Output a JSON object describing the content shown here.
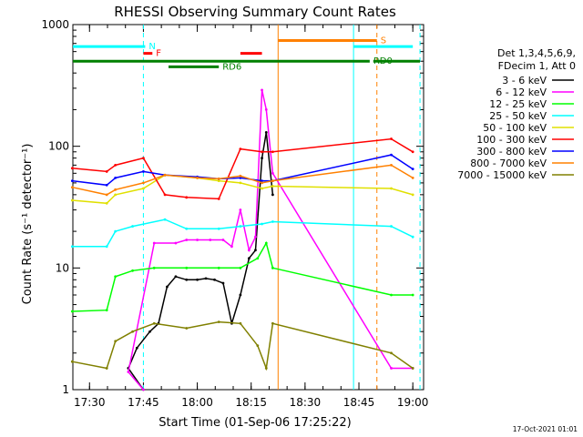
{
  "chart_data": {
    "type": "line",
    "title": "RHESSI Observing Summary Count Rates",
    "xlabel": "Start Time (01-Sep-06 17:25:22)",
    "ylabel": "Count Rate (s⁻¹ detector⁻¹)",
    "yscale": "log",
    "xlim": [
      "17:25:22",
      "19:03:00"
    ],
    "ylim": [
      1,
      1000
    ],
    "x_ticks": [
      "17:30",
      "17:45",
      "18:00",
      "18:15",
      "18:30",
      "18:45",
      "19:00"
    ],
    "y_ticks": [
      "1",
      "10",
      "100",
      "1000"
    ],
    "legend_header": [
      "Det 1,3,4,5,6,9,",
      "FDecim 1, Att 0"
    ],
    "legend_position": "right",
    "timestamp": "17-Oct-2021 01:01",
    "series": [
      {
        "name": "3 - 6 keV",
        "color": "#000000",
        "x": [
          17.75,
          17.68,
          17.72,
          17.78,
          17.82,
          17.86,
          17.9,
          17.95,
          18.0,
          18.04,
          18.08,
          18.12,
          18.16,
          18.2,
          18.24,
          18.27,
          18.3,
          18.32,
          18.35
        ],
        "y": [
          1.0,
          1.5,
          2.2,
          3.0,
          3.5,
          7.0,
          8.5,
          8.0,
          8.0,
          8.2,
          8.0,
          7.5,
          3.5,
          6.0,
          12.0,
          14.0,
          80.0,
          130.0,
          40.0
        ]
      },
      {
        "name": "6 - 12 keV",
        "color": "#ff00ff",
        "x": [
          17.75,
          17.68,
          17.8,
          17.9,
          17.95,
          18.0,
          18.06,
          18.12,
          18.16,
          18.2,
          18.24,
          18.27,
          18.3,
          18.32,
          18.35,
          18.9,
          19.0
        ],
        "y": [
          1.0,
          1.4,
          16.0,
          16.0,
          17.0,
          17.0,
          17.0,
          17.0,
          15.0,
          30.0,
          14.0,
          18.0,
          290.0,
          200.0,
          60.0,
          1.5,
          1.5
        ]
      },
      {
        "name": "12 - 25 keV",
        "color": "#00ff00",
        "x": [
          17.42,
          17.58,
          17.62,
          17.7,
          17.8,
          17.95,
          18.1,
          18.2,
          18.28,
          18.32,
          18.35,
          18.9,
          19.0
        ],
        "y": [
          4.4,
          4.5,
          8.5,
          9.5,
          10.0,
          10.0,
          10.0,
          10.0,
          12.0,
          16.0,
          10.0,
          6.0,
          6.0
        ]
      },
      {
        "name": "25 - 50 keV",
        "color": "#00ffff",
        "x": [
          17.42,
          17.58,
          17.62,
          17.7,
          17.85,
          17.95,
          18.1,
          18.2,
          18.3,
          18.35,
          18.9,
          19.0
        ],
        "y": [
          15.0,
          15.0,
          20.0,
          22.0,
          25.0,
          21.0,
          21.0,
          22.0,
          23.0,
          24.0,
          22.0,
          18.0
        ]
      },
      {
        "name": "50 - 100 keV",
        "color": "#e0e000",
        "x": [
          17.42,
          17.58,
          17.62,
          17.75,
          17.85,
          18.0,
          18.1,
          18.2,
          18.3,
          18.35,
          18.9,
          19.0
        ],
        "y": [
          36.0,
          34.0,
          40.0,
          45.0,
          58.0,
          55.0,
          52.0,
          50.0,
          45.0,
          47.0,
          45.0,
          40.0
        ]
      },
      {
        "name": "100 - 300 keV",
        "color": "#ff0000",
        "x": [
          17.42,
          17.58,
          17.62,
          17.75,
          17.85,
          17.95,
          18.1,
          18.2,
          18.3,
          18.35,
          18.9,
          19.0
        ],
        "y": [
          66.0,
          62.0,
          70.0,
          80.0,
          40.0,
          38.0,
          37.0,
          95.0,
          90.0,
          90.0,
          115.0,
          90.0
        ]
      },
      {
        "name": "300 - 800 keV",
        "color": "#0000ff",
        "x": [
          17.42,
          17.58,
          17.62,
          17.75,
          17.85,
          18.0,
          18.1,
          18.2,
          18.3,
          18.35,
          18.9,
          19.0
        ],
        "y": [
          52.0,
          48.0,
          55.0,
          62.0,
          58.0,
          56.0,
          54.0,
          55.0,
          52.0,
          52.0,
          85.0,
          65.0
        ]
      },
      {
        "name": "800 - 7000 keV",
        "color": "#ff8000",
        "x": [
          17.42,
          17.58,
          17.62,
          17.75,
          17.85,
          18.0,
          18.1,
          18.2,
          18.3,
          18.35,
          18.9,
          19.0
        ],
        "y": [
          46.0,
          40.0,
          44.0,
          50.0,
          58.0,
          55.0,
          54.0,
          57.0,
          50.0,
          52.0,
          70.0,
          55.0
        ]
      },
      {
        "name": "7000 - 15000 keV",
        "color": "#808000",
        "x": [
          17.42,
          17.58,
          17.62,
          17.7,
          17.8,
          17.95,
          18.1,
          18.2,
          18.28,
          18.32,
          18.35,
          18.9,
          19.0
        ],
        "y": [
          1.7,
          1.5,
          2.5,
          3.0,
          3.5,
          3.2,
          3.6,
          3.5,
          2.3,
          1.5,
          3.5,
          2.0,
          1.5
        ]
      }
    ],
    "bars": [
      {
        "label": "N",
        "color": "#00ffff",
        "x": [
          "17:25:22",
          "17:45:30"
        ],
        "y_level": 660
      },
      {
        "label": "F",
        "color": "#ff0000",
        "x": [
          "17:45:00",
          "17:47:30"
        ],
        "y_level": 580
      },
      {
        "label": "",
        "color": "#ff0000",
        "x": [
          "18:12:00",
          "18:18:00"
        ],
        "y_level": 580
      },
      {
        "label": "S",
        "color": "#ff8000",
        "x": [
          "18:22:30",
          "18:50:00"
        ],
        "y_level": 740
      },
      {
        "label": "",
        "color": "#00ffff",
        "x": [
          "18:43:30",
          "19:00:00"
        ],
        "y_level": 660
      },
      {
        "label": "RD0",
        "color": "#008000",
        "x": [
          "17:25:22",
          "18:48:00"
        ],
        "y_level": 500
      },
      {
        "label": "",
        "color": "#008000",
        "x": [
          "18:49:00",
          "19:02:00"
        ],
        "y_level": 500
      },
      {
        "label": "RD6",
        "color": "#008000",
        "x": [
          "17:52:00",
          "18:06:00"
        ],
        "y_level": 450
      }
    ],
    "vertical_lines": [
      {
        "time": "17:45:00",
        "color": "#00ffff",
        "style": "dashed"
      },
      {
        "time": "18:22:30",
        "color": "#ff8000",
        "style": "solid"
      },
      {
        "time": "18:43:30",
        "color": "#00ffff",
        "style": "solid"
      },
      {
        "time": "18:50:00",
        "color": "#ff8000",
        "style": "dashed"
      },
      {
        "time": "19:02:00",
        "color": "#00ffff",
        "style": "dashed"
      }
    ]
  }
}
